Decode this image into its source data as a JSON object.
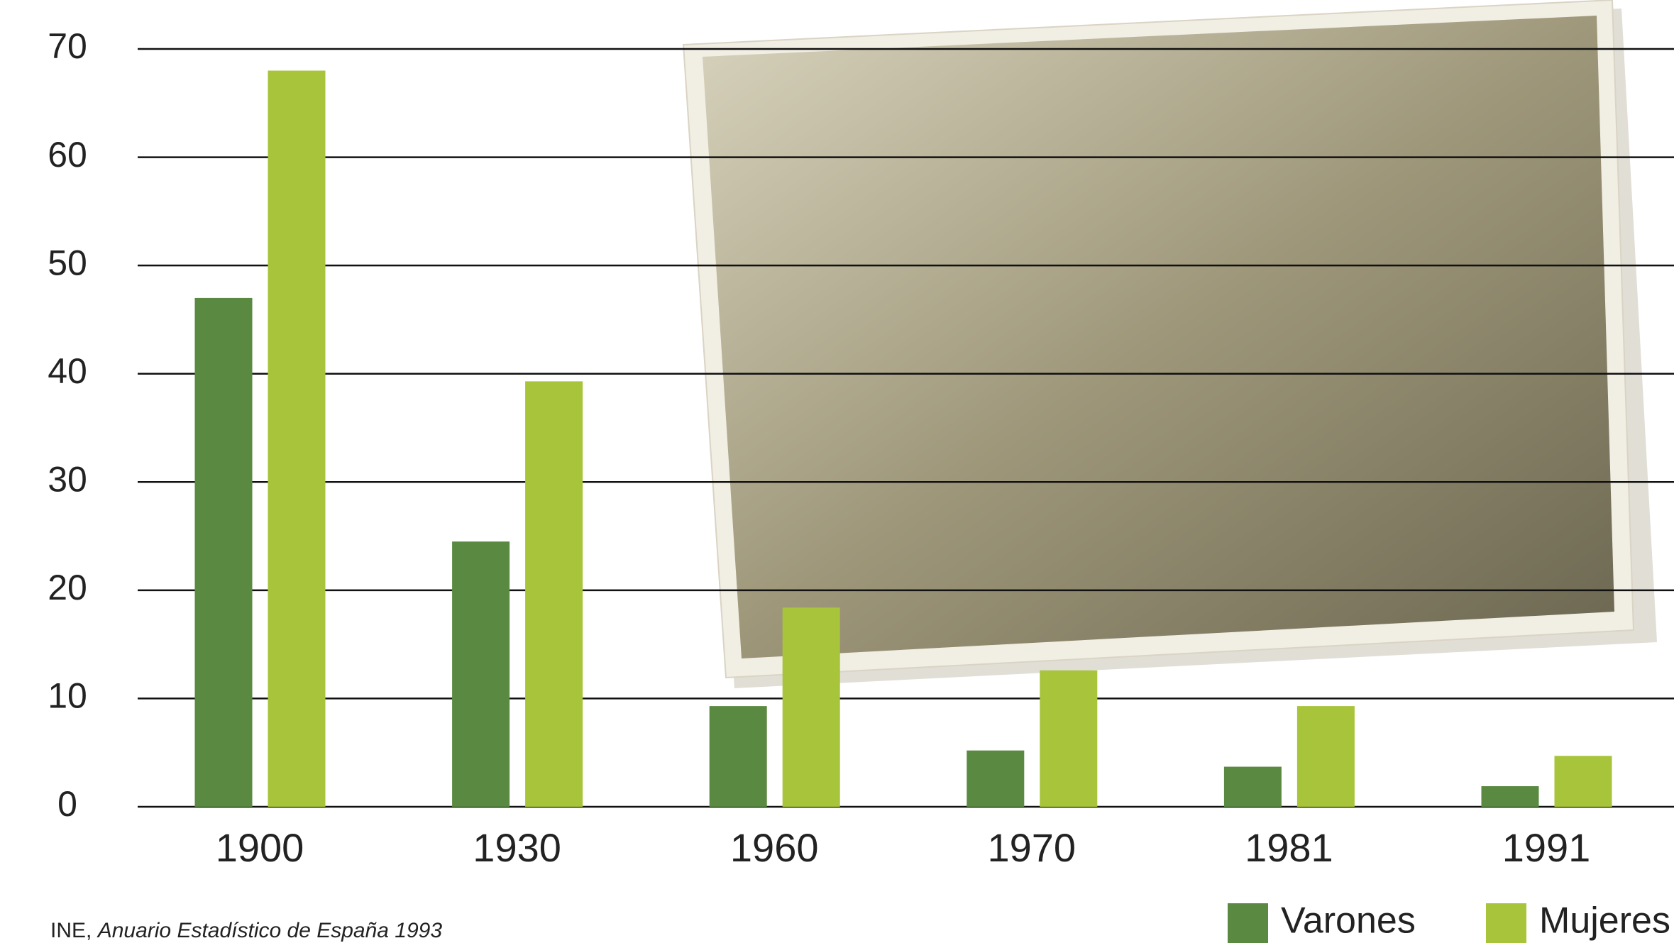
{
  "chart_data": {
    "type": "bar",
    "categories": [
      "1900",
      "1930",
      "1960",
      "1970",
      "1981",
      "1991"
    ],
    "series": [
      {
        "name": "Varones",
        "color": "#5a8a42",
        "values": [
          47,
          24.5,
          9.3,
          5.2,
          3.7,
          1.9
        ]
      },
      {
        "name": "Mujeres",
        "color": "#a7c43a",
        "values": [
          68,
          39.3,
          18.4,
          12.6,
          9.3,
          4.7
        ]
      }
    ],
    "ylim": [
      0,
      70
    ],
    "yticks": [
      0,
      10,
      20,
      30,
      40,
      50,
      60,
      70
    ],
    "grid": true,
    "legend": "bottom-right",
    "source": {
      "organization": "INE,",
      "title": "Anuario Estadístico de España 1993"
    }
  }
}
